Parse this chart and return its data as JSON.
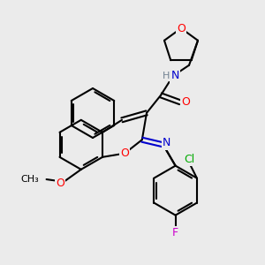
{
  "bg_color": "#ebebeb",
  "bond_color": "#000000",
  "lw": 1.5,
  "atom_colors": {
    "O": "#ff0000",
    "N": "#0000cd",
    "Cl": "#00aa00",
    "F": "#cc00cc",
    "H_label": "#708090",
    "C": "#000000"
  },
  "font_size": 9,
  "figsize": [
    3.0,
    3.0
  ],
  "dpi": 100
}
